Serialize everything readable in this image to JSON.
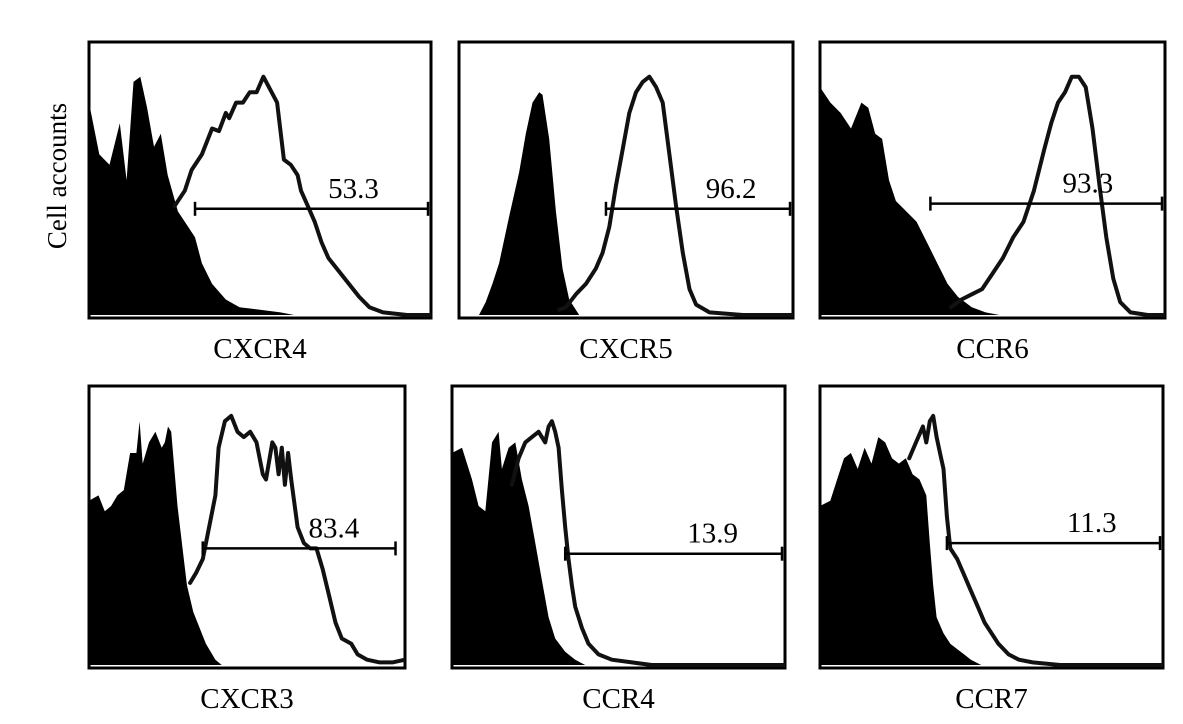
{
  "chart_data": {
    "type": "histogram",
    "ylabel": "Cell accounts",
    "panels": [
      {
        "marker": "CXCR4",
        "gate_percent": 53.3,
        "negative_curve": [
          [
            0.0,
            0.82
          ],
          [
            0.03,
            0.62
          ],
          [
            0.06,
            0.58
          ],
          [
            0.09,
            0.74
          ],
          [
            0.11,
            0.52
          ],
          [
            0.13,
            0.9
          ],
          [
            0.15,
            0.92
          ],
          [
            0.17,
            0.8
          ],
          [
            0.19,
            0.65
          ],
          [
            0.21,
            0.7
          ],
          [
            0.23,
            0.54
          ],
          [
            0.26,
            0.4
          ],
          [
            0.29,
            0.34
          ],
          [
            0.31,
            0.3
          ],
          [
            0.33,
            0.2
          ],
          [
            0.36,
            0.12
          ],
          [
            0.4,
            0.06
          ],
          [
            0.44,
            0.03
          ],
          [
            0.5,
            0.02
          ],
          [
            0.56,
            0.01
          ],
          [
            0.6,
            0.0
          ]
        ],
        "positive_curve": [
          [
            0.25,
            0.42
          ],
          [
            0.28,
            0.48
          ],
          [
            0.3,
            0.56
          ],
          [
            0.33,
            0.62
          ],
          [
            0.36,
            0.72
          ],
          [
            0.38,
            0.71
          ],
          [
            0.4,
            0.78
          ],
          [
            0.41,
            0.76
          ],
          [
            0.43,
            0.82
          ],
          [
            0.45,
            0.82
          ],
          [
            0.47,
            0.86
          ],
          [
            0.49,
            0.86
          ],
          [
            0.51,
            0.92
          ],
          [
            0.53,
            0.87
          ],
          [
            0.55,
            0.82
          ],
          [
            0.57,
            0.6
          ],
          [
            0.59,
            0.58
          ],
          [
            0.61,
            0.54
          ],
          [
            0.62,
            0.48
          ],
          [
            0.64,
            0.42
          ],
          [
            0.66,
            0.36
          ],
          [
            0.68,
            0.28
          ],
          [
            0.7,
            0.22
          ],
          [
            0.73,
            0.17
          ],
          [
            0.76,
            0.12
          ],
          [
            0.79,
            0.07
          ],
          [
            0.82,
            0.03
          ],
          [
            0.86,
            0.01
          ],
          [
            0.93,
            0.0
          ],
          [
            1.0,
            0.0
          ]
        ],
        "gate_range": [
          0.31,
          1.0
        ],
        "gate_level": 0.41
      },
      {
        "marker": "CXCR5",
        "gate_percent": 96.2,
        "negative_curve": [
          [
            0.06,
            0.0
          ],
          [
            0.08,
            0.05
          ],
          [
            0.1,
            0.12
          ],
          [
            0.12,
            0.2
          ],
          [
            0.15,
            0.38
          ],
          [
            0.18,
            0.55
          ],
          [
            0.2,
            0.7
          ],
          [
            0.22,
            0.82
          ],
          [
            0.24,
            0.86
          ],
          [
            0.25,
            0.85
          ],
          [
            0.27,
            0.68
          ],
          [
            0.29,
            0.4
          ],
          [
            0.31,
            0.18
          ],
          [
            0.33,
            0.06
          ],
          [
            0.36,
            0.0
          ]
        ],
        "positive_curve": [
          [
            0.3,
            0.02
          ],
          [
            0.32,
            0.03
          ],
          [
            0.35,
            0.08
          ],
          [
            0.38,
            0.12
          ],
          [
            0.41,
            0.18
          ],
          [
            0.43,
            0.24
          ],
          [
            0.45,
            0.34
          ],
          [
            0.47,
            0.5
          ],
          [
            0.49,
            0.64
          ],
          [
            0.51,
            0.78
          ],
          [
            0.53,
            0.86
          ],
          [
            0.55,
            0.9
          ],
          [
            0.57,
            0.92
          ],
          [
            0.59,
            0.88
          ],
          [
            0.61,
            0.82
          ],
          [
            0.63,
            0.62
          ],
          [
            0.65,
            0.42
          ],
          [
            0.67,
            0.24
          ],
          [
            0.69,
            0.1
          ],
          [
            0.71,
            0.04
          ],
          [
            0.75,
            0.01
          ],
          [
            0.85,
            0.0
          ],
          [
            1.0,
            0.0
          ]
        ],
        "gate_range": [
          0.44,
          1.0
        ],
        "gate_level": 0.41
      },
      {
        "marker": "CCR6",
        "gate_percent": 93.3,
        "negative_curve": [
          [
            0.0,
            0.88
          ],
          [
            0.03,
            0.82
          ],
          [
            0.06,
            0.78
          ],
          [
            0.09,
            0.72
          ],
          [
            0.12,
            0.82
          ],
          [
            0.14,
            0.8
          ],
          [
            0.16,
            0.7
          ],
          [
            0.18,
            0.68
          ],
          [
            0.2,
            0.52
          ],
          [
            0.22,
            0.44
          ],
          [
            0.25,
            0.4
          ],
          [
            0.28,
            0.36
          ],
          [
            0.31,
            0.28
          ],
          [
            0.34,
            0.2
          ],
          [
            0.37,
            0.12
          ],
          [
            0.4,
            0.07
          ],
          [
            0.44,
            0.03
          ],
          [
            0.48,
            0.01
          ],
          [
            0.52,
            0.0
          ]
        ],
        "positive_curve": [
          [
            0.38,
            0.03
          ],
          [
            0.41,
            0.06
          ],
          [
            0.44,
            0.08
          ],
          [
            0.47,
            0.1
          ],
          [
            0.5,
            0.16
          ],
          [
            0.53,
            0.22
          ],
          [
            0.56,
            0.3
          ],
          [
            0.59,
            0.36
          ],
          [
            0.62,
            0.48
          ],
          [
            0.65,
            0.64
          ],
          [
            0.67,
            0.74
          ],
          [
            0.69,
            0.82
          ],
          [
            0.71,
            0.86
          ],
          [
            0.73,
            0.92
          ],
          [
            0.75,
            0.92
          ],
          [
            0.77,
            0.88
          ],
          [
            0.79,
            0.72
          ],
          [
            0.81,
            0.5
          ],
          [
            0.83,
            0.3
          ],
          [
            0.85,
            0.14
          ],
          [
            0.87,
            0.05
          ],
          [
            0.9,
            0.01
          ],
          [
            0.95,
            0.0
          ],
          [
            1.0,
            0.0
          ]
        ],
        "gate_range": [
          0.32,
          1.0
        ],
        "gate_level": 0.43
      },
      {
        "marker": "CXCR3",
        "gate_percent": 83.4,
        "negative_curve": [
          [
            0.0,
            0.62
          ],
          [
            0.03,
            0.64
          ],
          [
            0.05,
            0.58
          ],
          [
            0.07,
            0.6
          ],
          [
            0.09,
            0.64
          ],
          [
            0.11,
            0.66
          ],
          [
            0.13,
            0.8
          ],
          [
            0.15,
            0.8
          ],
          [
            0.16,
            0.92
          ],
          [
            0.17,
            0.76
          ],
          [
            0.19,
            0.84
          ],
          [
            0.21,
            0.88
          ],
          [
            0.23,
            0.82
          ],
          [
            0.24,
            0.84
          ],
          [
            0.25,
            0.9
          ],
          [
            0.26,
            0.88
          ],
          [
            0.28,
            0.6
          ],
          [
            0.3,
            0.4
          ],
          [
            0.31,
            0.3
          ],
          [
            0.33,
            0.2
          ],
          [
            0.35,
            0.14
          ],
          [
            0.37,
            0.08
          ],
          [
            0.4,
            0.02
          ],
          [
            0.42,
            0.0
          ]
        ],
        "positive_curve": [
          [
            0.32,
            0.31
          ],
          [
            0.34,
            0.35
          ],
          [
            0.36,
            0.4
          ],
          [
            0.38,
            0.52
          ],
          [
            0.4,
            0.64
          ],
          [
            0.41,
            0.82
          ],
          [
            0.43,
            0.92
          ],
          [
            0.45,
            0.94
          ],
          [
            0.47,
            0.88
          ],
          [
            0.49,
            0.86
          ],
          [
            0.51,
            0.88
          ],
          [
            0.53,
            0.84
          ],
          [
            0.55,
            0.72
          ],
          [
            0.56,
            0.7
          ],
          [
            0.58,
            0.84
          ],
          [
            0.59,
            0.82
          ],
          [
            0.6,
            0.72
          ],
          [
            0.61,
            0.82
          ],
          [
            0.62,
            0.68
          ],
          [
            0.63,
            0.8
          ],
          [
            0.64,
            0.7
          ],
          [
            0.66,
            0.52
          ],
          [
            0.68,
            0.46
          ],
          [
            0.7,
            0.44
          ],
          [
            0.72,
            0.44
          ],
          [
            0.74,
            0.36
          ],
          [
            0.76,
            0.26
          ],
          [
            0.78,
            0.16
          ],
          [
            0.8,
            0.1
          ],
          [
            0.83,
            0.08
          ],
          [
            0.85,
            0.04
          ],
          [
            0.88,
            0.02
          ],
          [
            0.92,
            0.01
          ],
          [
            0.96,
            0.01
          ],
          [
            1.0,
            0.02
          ]
        ],
        "gate_range": [
          0.36,
          0.97
        ],
        "gate_level": 0.44
      },
      {
        "marker": "CCR4",
        "gate_percent": 13.9,
        "negative_curve": [
          [
            0.0,
            0.8
          ],
          [
            0.03,
            0.82
          ],
          [
            0.06,
            0.7
          ],
          [
            0.08,
            0.6
          ],
          [
            0.1,
            0.58
          ],
          [
            0.12,
            0.84
          ],
          [
            0.14,
            0.88
          ],
          [
            0.15,
            0.74
          ],
          [
            0.17,
            0.82
          ],
          [
            0.19,
            0.84
          ],
          [
            0.21,
            0.7
          ],
          [
            0.23,
            0.6
          ],
          [
            0.25,
            0.46
          ],
          [
            0.27,
            0.32
          ],
          [
            0.29,
            0.18
          ],
          [
            0.31,
            0.1
          ],
          [
            0.34,
            0.05
          ],
          [
            0.37,
            0.02
          ],
          [
            0.4,
            0.0
          ]
        ],
        "positive_curve": [
          [
            0.18,
            0.68
          ],
          [
            0.2,
            0.78
          ],
          [
            0.22,
            0.84
          ],
          [
            0.24,
            0.86
          ],
          [
            0.26,
            0.88
          ],
          [
            0.28,
            0.84
          ],
          [
            0.29,
            0.9
          ],
          [
            0.3,
            0.92
          ],
          [
            0.31,
            0.88
          ],
          [
            0.32,
            0.82
          ],
          [
            0.33,
            0.66
          ],
          [
            0.34,
            0.52
          ],
          [
            0.35,
            0.4
          ],
          [
            0.36,
            0.3
          ],
          [
            0.37,
            0.22
          ],
          [
            0.39,
            0.14
          ],
          [
            0.41,
            0.08
          ],
          [
            0.44,
            0.04
          ],
          [
            0.48,
            0.02
          ],
          [
            0.54,
            0.01
          ],
          [
            0.6,
            0.0
          ],
          [
            0.8,
            0.0
          ],
          [
            1.0,
            0.0
          ]
        ],
        "gate_range": [
          0.34,
          1.0
        ],
        "gate_level": 0.42
      },
      {
        "marker": "CCR7",
        "gate_percent": 11.3,
        "negative_curve": [
          [
            0.0,
            0.6
          ],
          [
            0.03,
            0.62
          ],
          [
            0.05,
            0.7
          ],
          [
            0.07,
            0.78
          ],
          [
            0.09,
            0.8
          ],
          [
            0.11,
            0.74
          ],
          [
            0.13,
            0.82
          ],
          [
            0.15,
            0.76
          ],
          [
            0.17,
            0.86
          ],
          [
            0.19,
            0.84
          ],
          [
            0.21,
            0.78
          ],
          [
            0.23,
            0.76
          ],
          [
            0.25,
            0.78
          ],
          [
            0.27,
            0.72
          ],
          [
            0.29,
            0.7
          ],
          [
            0.31,
            0.64
          ],
          [
            0.32,
            0.46
          ],
          [
            0.33,
            0.3
          ],
          [
            0.34,
            0.18
          ],
          [
            0.36,
            0.12
          ],
          [
            0.38,
            0.08
          ],
          [
            0.4,
            0.06
          ],
          [
            0.42,
            0.04
          ],
          [
            0.44,
            0.02
          ],
          [
            0.47,
            0.0
          ]
        ],
        "positive_curve": [
          [
            0.26,
            0.78
          ],
          [
            0.28,
            0.84
          ],
          [
            0.3,
            0.9
          ],
          [
            0.31,
            0.84
          ],
          [
            0.32,
            0.92
          ],
          [
            0.33,
            0.94
          ],
          [
            0.34,
            0.86
          ],
          [
            0.35,
            0.8
          ],
          [
            0.36,
            0.74
          ],
          [
            0.37,
            0.56
          ],
          [
            0.38,
            0.44
          ],
          [
            0.4,
            0.4
          ],
          [
            0.42,
            0.34
          ],
          [
            0.44,
            0.28
          ],
          [
            0.46,
            0.22
          ],
          [
            0.48,
            0.16
          ],
          [
            0.5,
            0.12
          ],
          [
            0.52,
            0.08
          ],
          [
            0.55,
            0.04
          ],
          [
            0.58,
            0.02
          ],
          [
            0.62,
            0.01
          ],
          [
            0.7,
            0.0
          ],
          [
            1.0,
            0.0
          ]
        ],
        "gate_range": [
          0.37,
          1.0
        ],
        "gate_level": 0.46
      }
    ]
  }
}
